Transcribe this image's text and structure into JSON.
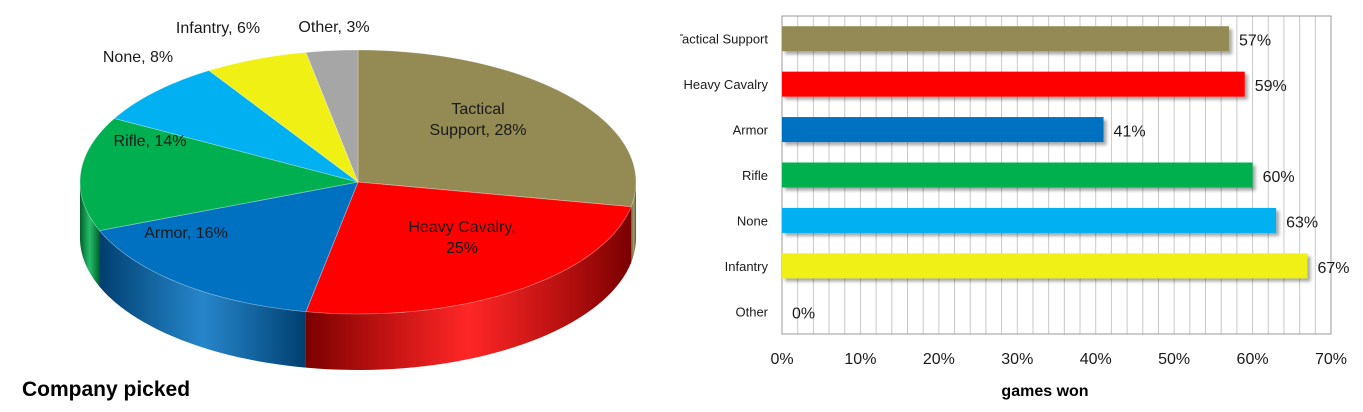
{
  "chart_data": [
    {
      "type": "pie",
      "title": "Company picked",
      "slices": [
        {
          "label": "Tactical Support",
          "value": 28,
          "color": "#948A54",
          "side_color": "#5E5733"
        },
        {
          "label": "Heavy Cavalry",
          "value": 25,
          "color": "#FF0000",
          "side_color": "#7A0000"
        },
        {
          "label": "Armor",
          "value": 16,
          "color": "#0070C0",
          "side_color": "#003E6E"
        },
        {
          "label": "Rifle",
          "value": 14,
          "color": "#00B050",
          "side_color": "#00602B"
        },
        {
          "label": "None",
          "value": 8,
          "color": "#00B0F0",
          "side_color": "#006A91"
        },
        {
          "label": "Infantry",
          "value": 6,
          "color": "#F0F015",
          "side_color": "#8E8E0A"
        },
        {
          "label": "Other",
          "value": 3,
          "color": "#A6A6A6",
          "side_color": "#626262"
        }
      ],
      "slice_labels": [
        {
          "lines": [
            "Tactical",
            "Support, 28%"
          ]
        },
        {
          "lines": [
            "Heavy Cavalry,",
            "25%"
          ]
        },
        {
          "lines": [
            "Armor, 16%"
          ]
        },
        {
          "lines": [
            "Rifle, 14%"
          ]
        },
        {
          "lines": [
            "None, 8%"
          ]
        },
        {
          "lines": [
            "Infantry, 6%"
          ]
        },
        {
          "lines": [
            "Other, 3%"
          ]
        }
      ]
    },
    {
      "type": "bar",
      "orientation": "horizontal",
      "title": "",
      "xlabel": "games won",
      "ylabel": "",
      "categories": [
        "Tactical Support",
        "Heavy Cavalry",
        "Armor",
        "Rifle",
        "None",
        "Infantry",
        "Other"
      ],
      "values": [
        57,
        59,
        41,
        60,
        63,
        67,
        0
      ],
      "value_labels": [
        "57%",
        "59%",
        "41%",
        "60%",
        "63%",
        "67%",
        "0%"
      ],
      "colors": [
        "#948A54",
        "#FF0000",
        "#0070C0",
        "#00B050",
        "#00B0F0",
        "#F0F015",
        "#A6A6A6"
      ],
      "xlim": [
        0,
        70
      ],
      "ticks": [
        0,
        10,
        20,
        30,
        40,
        50,
        60,
        70
      ],
      "tick_labels": [
        "0%",
        "10%",
        "20%",
        "30%",
        "40%",
        "50%",
        "60%",
        "70%"
      ],
      "grid": true
    }
  ]
}
